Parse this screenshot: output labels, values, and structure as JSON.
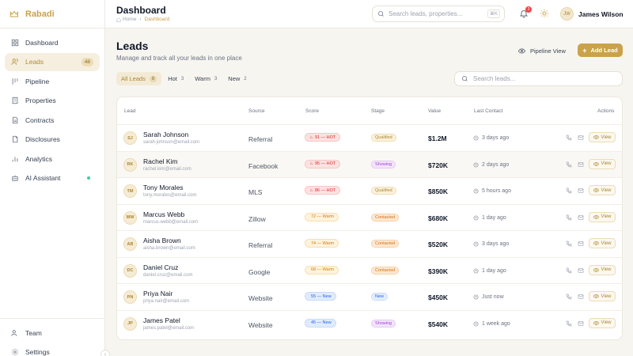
{
  "brand": {
    "name": "Rabadi"
  },
  "sidebar": {
    "items": [
      {
        "label": "Dashboard",
        "icon": "dashboard-icon"
      },
      {
        "label": "Leads",
        "icon": "users-icon",
        "badge": "48",
        "active": true
      },
      {
        "label": "Pipeline",
        "icon": "pipeline-icon"
      },
      {
        "label": "Properties",
        "icon": "building-icon"
      },
      {
        "label": "Contracts",
        "icon": "document-icon"
      },
      {
        "label": "Disclosures",
        "icon": "file-icon"
      },
      {
        "label": "Analytics",
        "icon": "chart-icon"
      },
      {
        "label": "AI Assistant",
        "icon": "bot-icon"
      }
    ],
    "bottom_items": [
      {
        "label": "Team",
        "icon": "team-icon"
      },
      {
        "label": "Settings",
        "icon": "gear-icon"
      }
    ]
  },
  "topbar": {
    "title": "Dashboard",
    "breadcrumb_home": "Home",
    "breadcrumb_current": "Dashboard",
    "search_placeholder": "Search leads, properties...",
    "search_shortcut": "⌘K",
    "notification_count": "3",
    "user_initials": "JW",
    "user_name": "James Wilson"
  },
  "main": {
    "title": "Leads",
    "subtitle": "Manage and track all your leads in one place",
    "pipeline_view_label": "Pipeline View",
    "add_lead_label": "Add Lead",
    "search_placeholder": "Search leads...",
    "tabs": [
      {
        "label": "All Leads",
        "count": "8",
        "active": true
      },
      {
        "label": "Hot",
        "count": "3"
      },
      {
        "label": "Warm",
        "count": "3"
      },
      {
        "label": "New",
        "count": "2"
      }
    ],
    "columns": [
      "Lead",
      "Source",
      "Score",
      "Stage",
      "Value",
      "Last Contact",
      "Actions"
    ],
    "rows": [
      {
        "initials": "SJ",
        "name": "Sarah Johnson",
        "email": "sarah.johnson@email.com",
        "source": "Referral",
        "score": "91 — HOT",
        "score_type": "hot",
        "stage": "Qualified",
        "stage_type": "qualified",
        "value": "$1.2M",
        "last_contact": "3 days ago"
      },
      {
        "initials": "RK",
        "name": "Rachel Kim",
        "email": "rachel.kim@email.com",
        "source": "Facebook",
        "score": "95 — HOT",
        "score_type": "hot",
        "stage": "Showing",
        "stage_type": "showing",
        "value": "$720K",
        "last_contact": "2 days ago"
      },
      {
        "initials": "TM",
        "name": "Tony Morales",
        "email": "tony.morales@email.com",
        "source": "MLS",
        "score": "86 — HOT",
        "score_type": "hot",
        "stage": "Qualified",
        "stage_type": "qualified",
        "value": "$850K",
        "last_contact": "5 hours ago"
      },
      {
        "initials": "MW",
        "name": "Marcus Webb",
        "email": "marcus.webb@email.com",
        "source": "Zillow",
        "score": "72 — Warm",
        "score_type": "warm",
        "stage": "Contacted",
        "stage_type": "contacted",
        "value": "$680K",
        "last_contact": "1 day ago"
      },
      {
        "initials": "AB",
        "name": "Aisha Brown",
        "email": "aisha.brown@email.com",
        "source": "Referral",
        "score": "74 — Warm",
        "score_type": "warm",
        "stage": "Contacted",
        "stage_type": "contacted",
        "value": "$520K",
        "last_contact": "3 days ago"
      },
      {
        "initials": "DC",
        "name": "Daniel Cruz",
        "email": "daniel.cruz@email.com",
        "source": "Google",
        "score": "68 — Warm",
        "score_type": "warm",
        "stage": "Contacted",
        "stage_type": "contacted",
        "value": "$390K",
        "last_contact": "1 day ago"
      },
      {
        "initials": "PN",
        "name": "Priya Nair",
        "email": "priya.nair@email.com",
        "source": "Website",
        "score": "55 — New",
        "score_type": "new",
        "stage": "New",
        "stage_type": "new",
        "value": "$450K",
        "last_contact": "Just now"
      },
      {
        "initials": "JP",
        "name": "James Patel",
        "email": "james.patel@email.com",
        "source": "Website",
        "score": "45 — New",
        "score_type": "new",
        "stage": "Showing",
        "stage_type": "showing",
        "value": "$540K",
        "last_contact": "1 week ago"
      }
    ],
    "view_label": "View"
  },
  "colors": {
    "accent": "#c9a24a",
    "hot": "#dc2626",
    "warm": "#d97706",
    "new": "#2563eb",
    "online": "#34d399"
  }
}
